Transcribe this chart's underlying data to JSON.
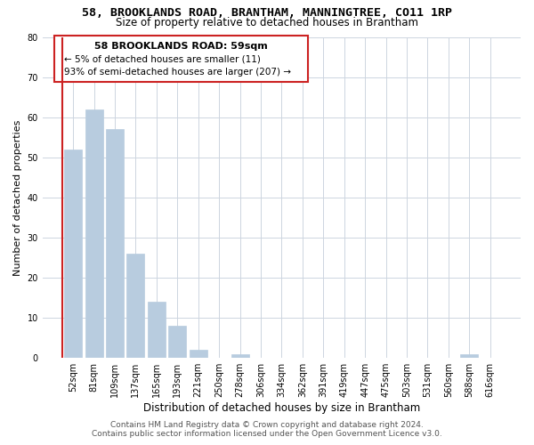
{
  "title": "58, BROOKLANDS ROAD, BRANTHAM, MANNINGTREE, CO11 1RP",
  "subtitle": "Size of property relative to detached houses in Brantham",
  "xlabel": "Distribution of detached houses by size in Brantham",
  "ylabel": "Number of detached properties",
  "bin_labels": [
    "52sqm",
    "81sqm",
    "109sqm",
    "137sqm",
    "165sqm",
    "193sqm",
    "221sqm",
    "250sqm",
    "278sqm",
    "306sqm",
    "334sqm",
    "362sqm",
    "391sqm",
    "419sqm",
    "447sqm",
    "475sqm",
    "503sqm",
    "531sqm",
    "560sqm",
    "588sqm",
    "616sqm"
  ],
  "bar_values": [
    52,
    62,
    57,
    26,
    14,
    8,
    2,
    0,
    1,
    0,
    0,
    0,
    0,
    0,
    0,
    0,
    0,
    0,
    0,
    1,
    0
  ],
  "bar_color": "#b8ccdf",
  "highlight_line_color": "#cc2222",
  "ylim": [
    0,
    80
  ],
  "yticks": [
    0,
    10,
    20,
    30,
    40,
    50,
    60,
    70,
    80
  ],
  "annotation_title": "58 BROOKLANDS ROAD: 59sqm",
  "annotation_line1": "← 5% of detached houses are smaller (11)",
  "annotation_line2": "93% of semi-detached houses are larger (207) →",
  "annotation_box_color": "#ffffff",
  "annotation_border_color": "#cc2222",
  "footer_line1": "Contains HM Land Registry data © Crown copyright and database right 2024.",
  "footer_line2": "Contains public sector information licensed under the Open Government Licence v3.0.",
  "bg_color": "#ffffff",
  "grid_color": "#cdd5e0",
  "title_fontsize": 9.5,
  "subtitle_fontsize": 8.5,
  "ylabel_fontsize": 8,
  "xlabel_fontsize": 8.5,
  "tick_fontsize": 7,
  "ann_title_fontsize": 8,
  "ann_text_fontsize": 7.5,
  "footer_fontsize": 6.5
}
